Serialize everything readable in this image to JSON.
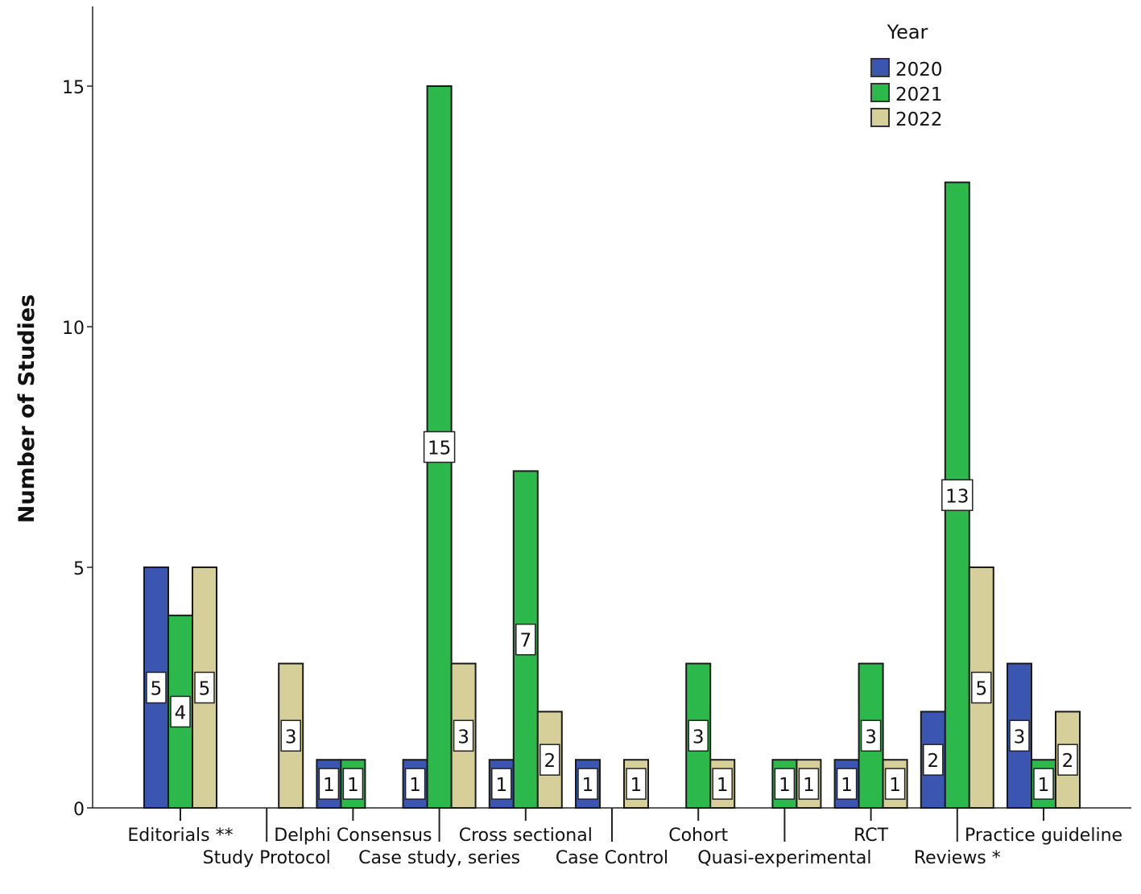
{
  "chart_data": {
    "type": "bar",
    "title": "",
    "xlabel": "",
    "ylabel": "Number of Studies",
    "ylim": [
      0,
      16.7
    ],
    "yticks": [
      0,
      5,
      10,
      15
    ],
    "grid": false,
    "legend": {
      "title": "Year",
      "placement": "top-right"
    },
    "categories": [
      "Editorials **",
      "Study Protocol",
      "Delphi Consensus",
      "Case study, series",
      "Cross sectional",
      "Case Control",
      "Cohort",
      "Quasi-experimental",
      "RCT",
      "Reviews *",
      "Practice guideline"
    ],
    "series": [
      {
        "name": "2020",
        "color": "#3a56b0",
        "values": [
          5,
          null,
          1,
          1,
          1,
          1,
          null,
          null,
          1,
          2,
          3
        ]
      },
      {
        "name": "2021",
        "color": "#2db84b",
        "values": [
          4,
          null,
          1,
          15,
          7,
          null,
          3,
          1,
          3,
          13,
          1
        ]
      },
      {
        "name": "2022",
        "color": "#d6cf9a",
        "values": [
          5,
          3,
          null,
          3,
          2,
          1,
          1,
          1,
          1,
          5,
          2
        ]
      }
    ],
    "data_labels": true
  }
}
